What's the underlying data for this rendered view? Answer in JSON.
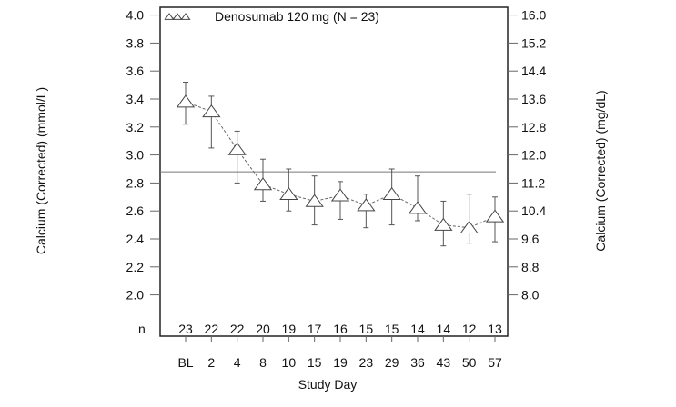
{
  "chart_data": {
    "type": "line",
    "xlabel": "Study Day",
    "ylabel": "Calcium (Corrected) (mmol/L)",
    "ylabel_right": "Calcium (Corrected) (mg/dL)",
    "ylim": [
      2.0,
      4.0
    ],
    "yticks": [
      "2.0",
      "2.2",
      "2.4",
      "2.6",
      "2.8",
      "3.0",
      "3.2",
      "3.4",
      "3.6",
      "3.8",
      "4.0"
    ],
    "yticks_right": [
      "8.0",
      "8.8",
      "9.6",
      "10.4",
      "11.2",
      "12.0",
      "12.8",
      "13.6",
      "14.4",
      "15.2",
      "16.0"
    ],
    "categories": [
      "BL",
      "2",
      "4",
      "8",
      "10",
      "15",
      "19",
      "23",
      "29",
      "36",
      "43",
      "50",
      "57"
    ],
    "n_label": "n",
    "n": [
      "23",
      "22",
      "22",
      "20",
      "19",
      "17",
      "16",
      "15",
      "15",
      "14",
      "14",
      "12",
      "13"
    ],
    "reference_line": 2.88,
    "grid": false,
    "legend_position": "top-left",
    "series": [
      {
        "name": "Denosumab 120 mg (N = 23)",
        "marker": "triangle-open",
        "line_style": "dashed",
        "values": [
          3.38,
          3.31,
          3.04,
          2.79,
          2.72,
          2.67,
          2.71,
          2.64,
          2.72,
          2.62,
          2.5,
          2.48,
          2.56
        ],
        "upper": [
          3.52,
          3.42,
          3.17,
          2.97,
          2.9,
          2.85,
          2.81,
          2.72,
          2.9,
          2.85,
          2.67,
          2.72,
          2.7
        ],
        "lower": [
          3.22,
          3.05,
          2.8,
          2.67,
          2.6,
          2.5,
          2.54,
          2.48,
          2.5,
          2.53,
          2.35,
          2.37,
          2.38
        ]
      }
    ]
  }
}
